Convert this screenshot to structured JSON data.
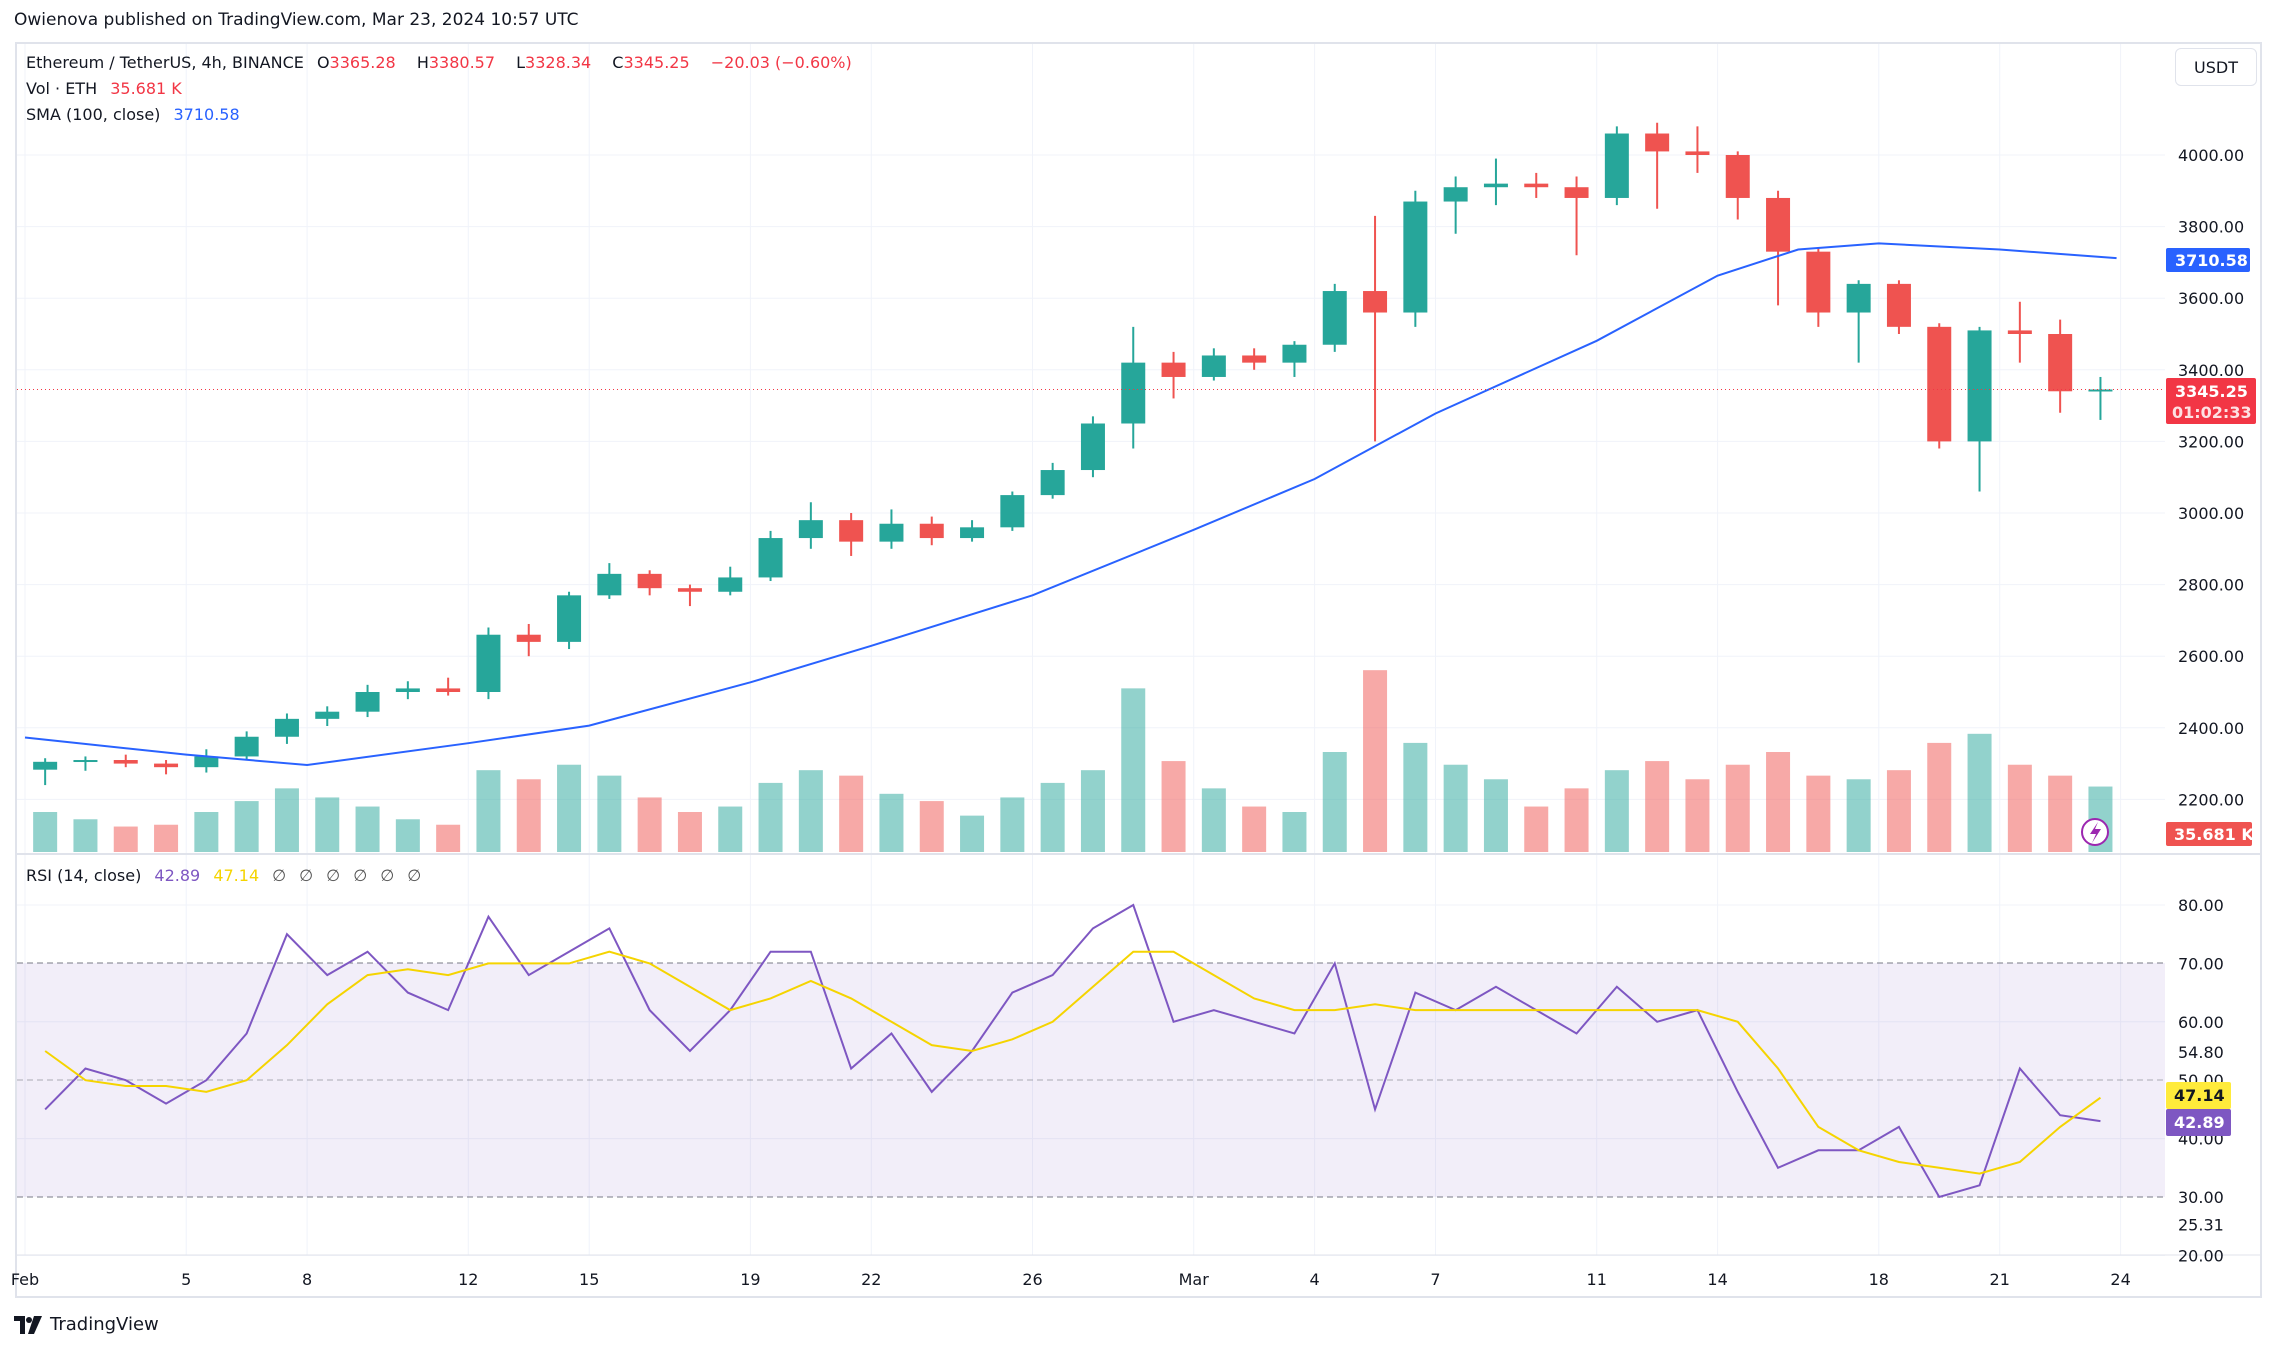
{
  "header": {
    "published": "Owienova published on TradingView.com, Mar 23, 2024 10:57 UTC"
  },
  "legend": {
    "symbol": "Ethereum / TetherUS, 4h, BINANCE",
    "o_label": "O",
    "o": "3365.28",
    "h_label": "H",
    "h": "3380.57",
    "l_label": "L",
    "l": "3328.34",
    "c_label": "C",
    "c": "3345.25",
    "change": "−20.03 (−0.60%)",
    "vol_label": "Vol · ETH",
    "vol": "35.681 K",
    "sma_label": "SMA (100, close)",
    "sma": "3710.58",
    "rsi_label": "RSI (14, close)",
    "rsi": "42.89",
    "rsi_ma": "47.14",
    "rsi_extra": [
      "∅",
      "∅",
      "∅",
      "∅",
      "∅",
      "∅"
    ]
  },
  "currency_button": "USDT",
  "price_axis": {
    "ticks": [
      "4000.00",
      "3800.00",
      "3600.00",
      "3400.00",
      "3200.00",
      "3000.00",
      "2800.00",
      "2600.00",
      "2400.00",
      "2200.00"
    ]
  },
  "price_tags": {
    "sma": "3710.58",
    "last": "3345.25",
    "countdown": "01:02:33",
    "volume": "35.681 K"
  },
  "rsi_axis": {
    "ticks": [
      "80.00",
      "70.00",
      "60.00",
      "54.80",
      "50.00",
      "40.00",
      "30.00",
      "25.31",
      "20.00"
    ],
    "rsi_tag": "42.89",
    "ma_tag": "47.14"
  },
  "time_axis": {
    "labels": [
      "Feb",
      "5",
      "8",
      "12",
      "15",
      "19",
      "22",
      "26",
      "Mar",
      "4",
      "7",
      "11",
      "14",
      "18",
      "21",
      "24"
    ]
  },
  "footer": {
    "brand": "TradingView"
  },
  "colors": {
    "up": "#26a69a",
    "down": "#ef5350",
    "sma": "#2962ff",
    "rsi": "#7e57c2",
    "rsi_ma": "#f5d400",
    "last_price": "#f23645"
  },
  "chart_data": {
    "type": "candlestick",
    "interval_note_shown": "4h",
    "dates": [
      "Feb 1",
      "Feb 2",
      "Feb 3",
      "Feb 4",
      "Feb 5",
      "Feb 6",
      "Feb 7",
      "Feb 8",
      "Feb 9",
      "Feb 10",
      "Feb 11",
      "Feb 12",
      "Feb 13",
      "Feb 14",
      "Feb 15",
      "Feb 16",
      "Feb 17",
      "Feb 18",
      "Feb 19",
      "Feb 20",
      "Feb 21",
      "Feb 22",
      "Feb 23",
      "Feb 24",
      "Feb 25",
      "Feb 26",
      "Feb 27",
      "Feb 28",
      "Feb 29",
      "Mar 1",
      "Mar 2",
      "Mar 3",
      "Mar 4",
      "Mar 5",
      "Mar 6",
      "Mar 7",
      "Mar 8",
      "Mar 9",
      "Mar 10",
      "Mar 11",
      "Mar 12",
      "Mar 13",
      "Mar 14",
      "Mar 15",
      "Mar 16",
      "Mar 17",
      "Mar 18",
      "Mar 19",
      "Mar 20",
      "Mar 21",
      "Mar 22",
      "Mar 23"
    ],
    "ohlc": [
      [
        2283,
        2315,
        2240,
        2305
      ],
      [
        2305,
        2320,
        2280,
        2310
      ],
      [
        2310,
        2325,
        2290,
        2300
      ],
      [
        2300,
        2310,
        2270,
        2290
      ],
      [
        2290,
        2340,
        2275,
        2320
      ],
      [
        2320,
        2390,
        2310,
        2375
      ],
      [
        2375,
        2440,
        2355,
        2425
      ],
      [
        2425,
        2460,
        2405,
        2445
      ],
      [
        2445,
        2520,
        2430,
        2500
      ],
      [
        2500,
        2530,
        2480,
        2510
      ],
      [
        2510,
        2540,
        2490,
        2500
      ],
      [
        2500,
        2680,
        2480,
        2660
      ],
      [
        2660,
        2690,
        2600,
        2640
      ],
      [
        2640,
        2780,
        2620,
        2770
      ],
      [
        2770,
        2860,
        2760,
        2830
      ],
      [
        2830,
        2840,
        2770,
        2790
      ],
      [
        2790,
        2800,
        2740,
        2780
      ],
      [
        2780,
        2850,
        2770,
        2820
      ],
      [
        2820,
        2950,
        2810,
        2930
      ],
      [
        2930,
        3030,
        2900,
        2980
      ],
      [
        2980,
        3000,
        2880,
        2920
      ],
      [
        2920,
        3010,
        2900,
        2970
      ],
      [
        2970,
        2990,
        2910,
        2930
      ],
      [
        2930,
        2980,
        2920,
        2960
      ],
      [
        2960,
        3060,
        2950,
        3050
      ],
      [
        3050,
        3140,
        3040,
        3120
      ],
      [
        3120,
        3270,
        3100,
        3250
      ],
      [
        3250,
        3520,
        3180,
        3420
      ],
      [
        3420,
        3450,
        3320,
        3380
      ],
      [
        3380,
        3460,
        3370,
        3440
      ],
      [
        3440,
        3460,
        3400,
        3420
      ],
      [
        3420,
        3480,
        3380,
        3470
      ],
      [
        3470,
        3640,
        3450,
        3620
      ],
      [
        3620,
        3830,
        3200,
        3560
      ],
      [
        3560,
        3900,
        3520,
        3870
      ],
      [
        3870,
        3940,
        3780,
        3910
      ],
      [
        3910,
        3990,
        3860,
        3920
      ],
      [
        3920,
        3950,
        3880,
        3910
      ],
      [
        3910,
        3940,
        3720,
        3880
      ],
      [
        3880,
        4080,
        3860,
        4060
      ],
      [
        4060,
        4090,
        3850,
        4010
      ],
      [
        4010,
        4080,
        3950,
        4000
      ],
      [
        4000,
        4010,
        3820,
        3880
      ],
      [
        3880,
        3900,
        3580,
        3730
      ],
      [
        3730,
        3740,
        3520,
        3560
      ],
      [
        3560,
        3650,
        3420,
        3640
      ],
      [
        3640,
        3650,
        3500,
        3520
      ],
      [
        3520,
        3530,
        3180,
        3200
      ],
      [
        3200,
        3520,
        3060,
        3510
      ],
      [
        3510,
        3590,
        3420,
        3500
      ],
      [
        3500,
        3540,
        3280,
        3340
      ],
      [
        3340,
        3380,
        3260,
        3345
      ]
    ],
    "volume_k": [
      22,
      18,
      14,
      15,
      22,
      28,
      35,
      30,
      25,
      18,
      15,
      45,
      40,
      48,
      42,
      30,
      22,
      25,
      38,
      45,
      42,
      32,
      28,
      20,
      30,
      38,
      45,
      90,
      50,
      35,
      25,
      22,
      55,
      100,
      60,
      48,
      40,
      25,
      35,
      45,
      50,
      40,
      48,
      55,
      42,
      40,
      45,
      60,
      65,
      48,
      42,
      36
    ],
    "sma100": [
      [
        0,
        2373
      ],
      [
        4,
        2325
      ],
      [
        7,
        2296
      ],
      [
        11,
        2357
      ],
      [
        14,
        2406
      ],
      [
        18,
        2527
      ],
      [
        21,
        2629
      ],
      [
        25,
        2770
      ],
      [
        29,
        2953
      ],
      [
        32,
        3095
      ],
      [
        35,
        3278
      ],
      [
        39,
        3481
      ],
      [
        42,
        3663
      ],
      [
        44,
        3736
      ],
      [
        46,
        3753
      ],
      [
        49,
        3736
      ],
      [
        51.9,
        3712
      ]
    ],
    "rsi": [
      45,
      52,
      50,
      46,
      50,
      58,
      75,
      68,
      72,
      65,
      62,
      78,
      68,
      72,
      76,
      62,
      55,
      62,
      72,
      72,
      52,
      58,
      48,
      55,
      65,
      68,
      76,
      80,
      60,
      62,
      60,
      58,
      70,
      45,
      65,
      62,
      66,
      62,
      58,
      66,
      60,
      62,
      48,
      35,
      38,
      38,
      42,
      30,
      32,
      52,
      44,
      43
    ],
    "rsi_ma": [
      55,
      50,
      49,
      49,
      48,
      50,
      56,
      63,
      68,
      69,
      68,
      70,
      70,
      70,
      72,
      70,
      66,
      62,
      64,
      67,
      64,
      60,
      56,
      55,
      57,
      60,
      66,
      72,
      72,
      68,
      64,
      62,
      62,
      63,
      62,
      62,
      62,
      62,
      62,
      62,
      62,
      62,
      60,
      52,
      42,
      38,
      36,
      35,
      34,
      36,
      42,
      47
    ],
    "price_range": [
      2150,
      4150
    ],
    "rsi_range": [
      20,
      85
    ],
    "rsi_bands": [
      70,
      50,
      30
    ]
  }
}
